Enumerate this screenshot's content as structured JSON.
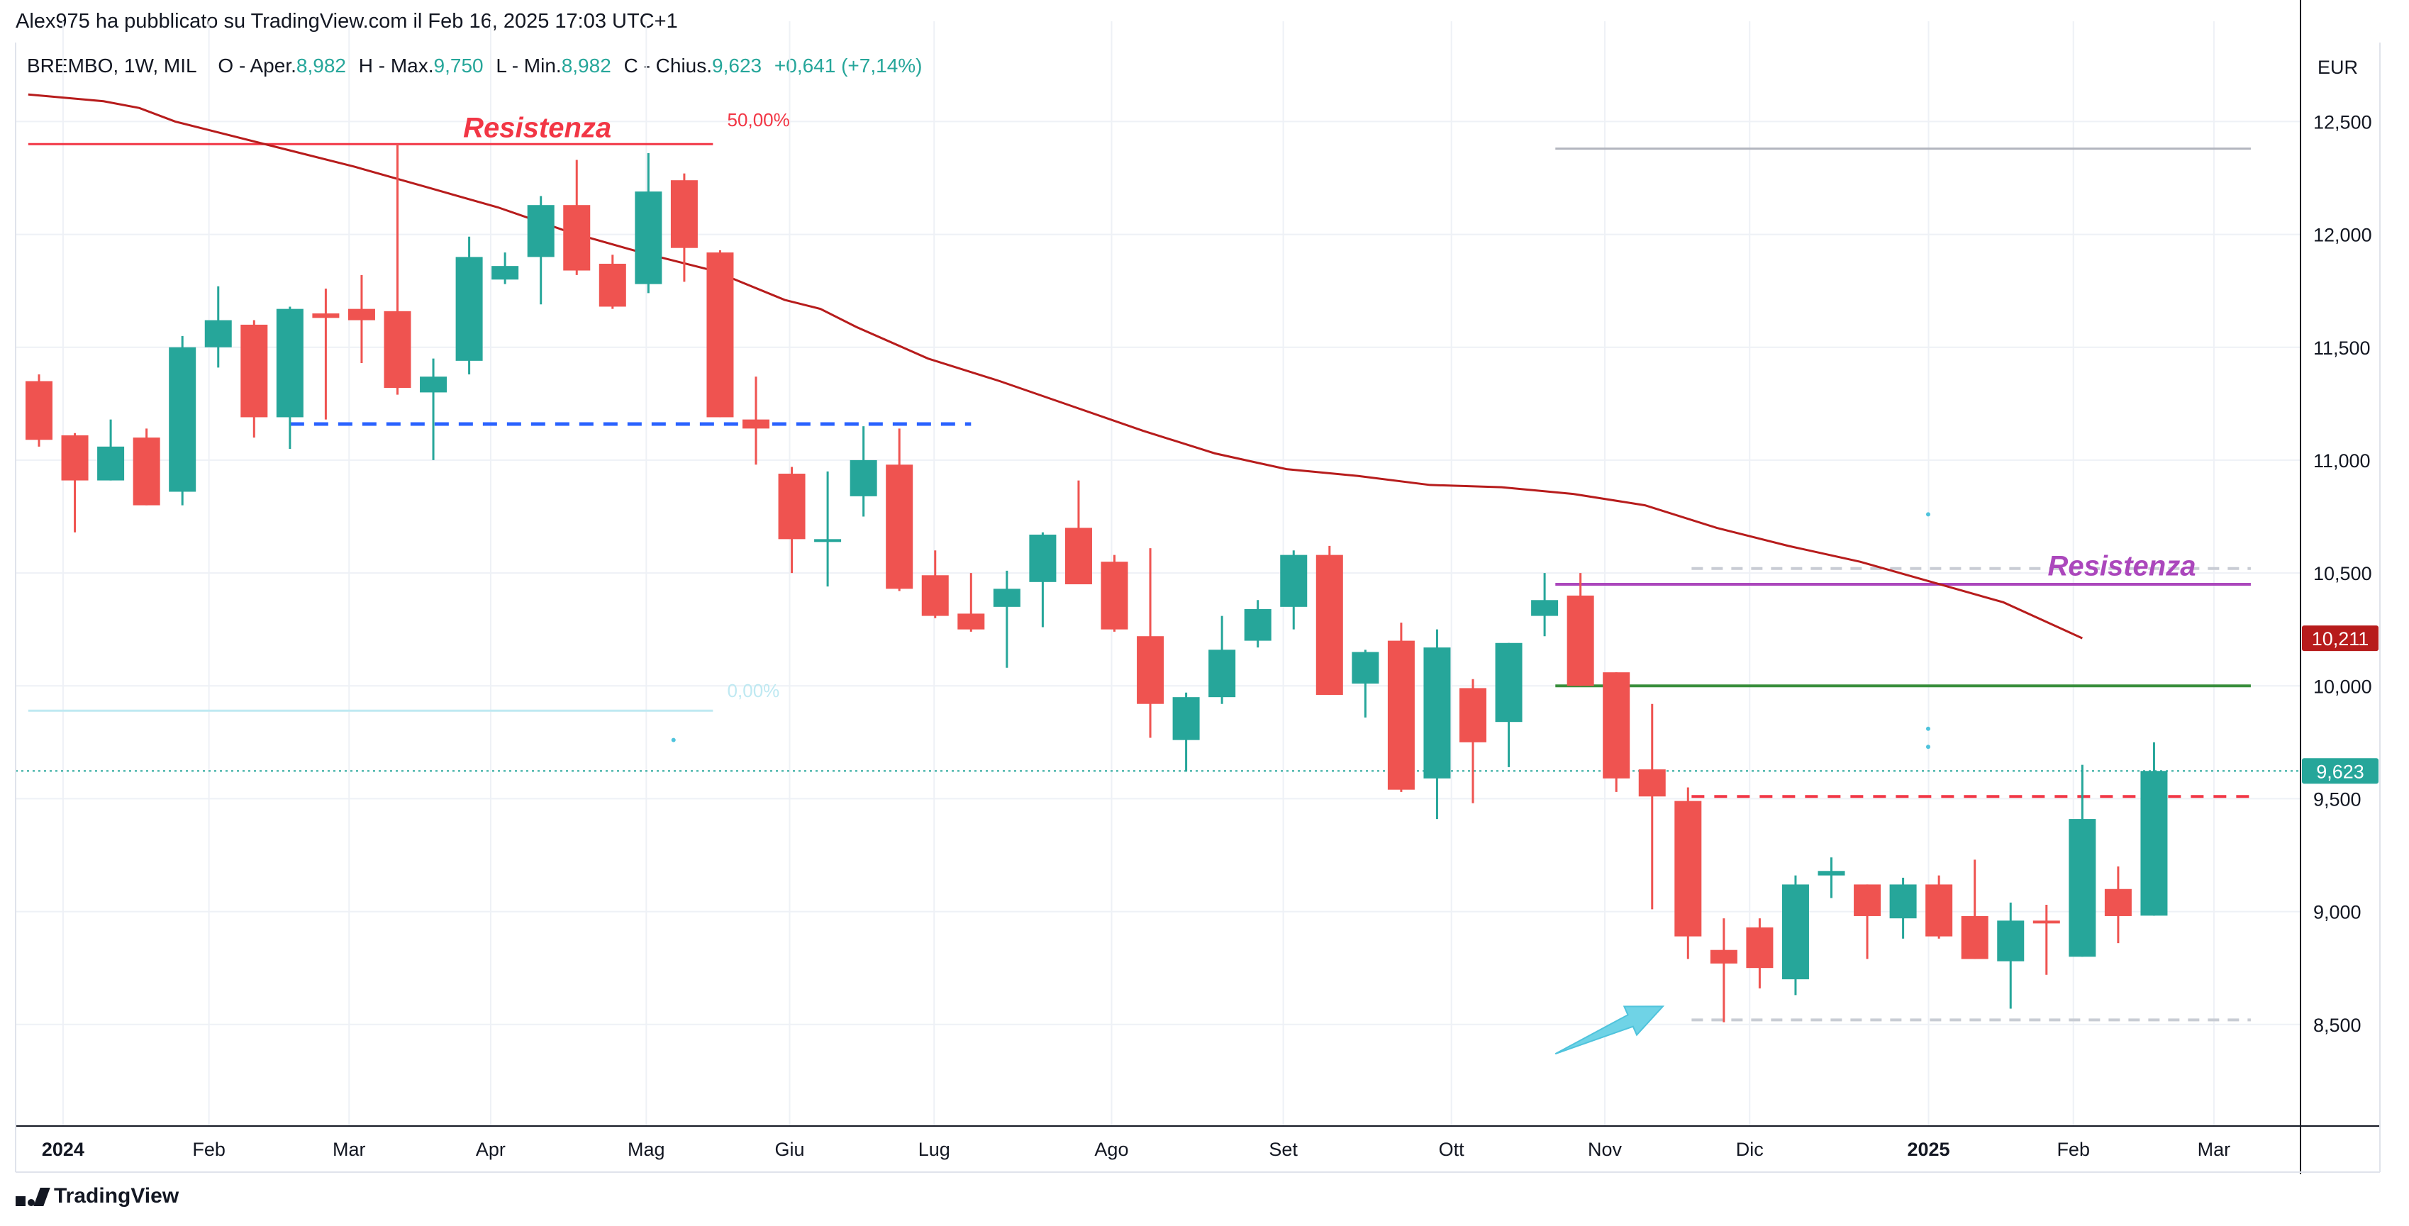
{
  "header": {
    "published": "Alex975 ha pubblicato su TradingView.com il Feb 16, 2025 17:03 UTC+1"
  },
  "legend": {
    "symbol": "BREMBO, 1W, MIL",
    "open_label": "O - Aper.",
    "open_value": "8,982",
    "high_label": "H - Max.",
    "high_value": "9,750",
    "low_label": "L - Min.",
    "low_value": "8,982",
    "close_label": "C - Chius.",
    "close_value": "9,623",
    "change": "+0,641 (+7,14%)"
  },
  "currency": "EUR",
  "footer": {
    "brand": "TradingView"
  },
  "colors": {
    "up": "#26a69a",
    "down": "#ef5350",
    "ma": "#b71c1c",
    "resistance_red": "#f23645",
    "resistance_purple": "#ab47bc",
    "support_green": "#388e3c",
    "dashed_blue": "#2962ff",
    "arrow": "#6fd3e6"
  },
  "chart_data": {
    "type": "candlestick",
    "interval": "1W",
    "ylim": [
      8.05,
      12.85
    ],
    "y_ticks": [
      {
        "v": 8.5,
        "label": "8,500"
      },
      {
        "v": 9.0,
        "label": "9,000"
      },
      {
        "v": 9.5,
        "label": "9,500"
      },
      {
        "v": 10.0,
        "label": "10,000"
      },
      {
        "v": 10.5,
        "label": "10,500"
      },
      {
        "v": 11.0,
        "label": "11,000"
      },
      {
        "v": 11.5,
        "label": "11,500"
      },
      {
        "v": 12.0,
        "label": "12,000"
      },
      {
        "v": 12.5,
        "label": "12,500"
      }
    ],
    "x_ticks": [
      {
        "i": 0.67,
        "label": "2024",
        "bold": true
      },
      {
        "i": 4.74,
        "label": "Feb"
      },
      {
        "i": 8.65,
        "label": "Mar"
      },
      {
        "i": 12.6,
        "label": "Apr"
      },
      {
        "i": 16.94,
        "label": "Mag"
      },
      {
        "i": 20.94,
        "label": "Giu"
      },
      {
        "i": 24.97,
        "label": "Lug"
      },
      {
        "i": 29.92,
        "label": "Ago"
      },
      {
        "i": 34.71,
        "label": "Set"
      },
      {
        "i": 39.4,
        "label": "Ott"
      },
      {
        "i": 43.68,
        "label": "Nov"
      },
      {
        "i": 47.72,
        "label": "Dic"
      },
      {
        "i": 52.71,
        "label": "2025",
        "bold": true
      },
      {
        "i": 56.75,
        "label": "Feb"
      },
      {
        "i": 60.67,
        "label": "Mar"
      }
    ],
    "candles": [
      {
        "o": 11.35,
        "h": 11.38,
        "l": 11.06,
        "c": 11.09
      },
      {
        "o": 11.11,
        "h": 11.12,
        "l": 10.68,
        "c": 10.91
      },
      {
        "o": 10.91,
        "h": 11.18,
        "l": 10.91,
        "c": 11.06
      },
      {
        "o": 11.1,
        "h": 11.14,
        "l": 10.8,
        "c": 10.8
      },
      {
        "o": 10.86,
        "h": 11.55,
        "l": 10.8,
        "c": 11.5
      },
      {
        "o": 11.5,
        "h": 11.77,
        "l": 11.41,
        "c": 11.62
      },
      {
        "o": 11.6,
        "h": 11.62,
        "l": 11.1,
        "c": 11.19
      },
      {
        "o": 11.19,
        "h": 11.68,
        "l": 11.05,
        "c": 11.67
      },
      {
        "o": 11.65,
        "h": 11.76,
        "l": 11.18,
        "c": 11.63
      },
      {
        "o": 11.67,
        "h": 11.82,
        "l": 11.43,
        "c": 11.62
      },
      {
        "o": 11.66,
        "h": 12.4,
        "l": 11.29,
        "c": 11.32
      },
      {
        "o": 11.3,
        "h": 11.45,
        "l": 11.0,
        "c": 11.37
      },
      {
        "o": 11.44,
        "h": 11.99,
        "l": 11.38,
        "c": 11.9
      },
      {
        "o": 11.8,
        "h": 11.92,
        "l": 11.78,
        "c": 11.86
      },
      {
        "o": 11.9,
        "h": 12.17,
        "l": 11.69,
        "c": 12.13
      },
      {
        "o": 12.13,
        "h": 12.33,
        "l": 11.82,
        "c": 11.84
      },
      {
        "o": 11.87,
        "h": 11.91,
        "l": 11.67,
        "c": 11.68
      },
      {
        "o": 11.78,
        "h": 12.36,
        "l": 11.74,
        "c": 12.19
      },
      {
        "o": 12.24,
        "h": 12.27,
        "l": 11.79,
        "c": 11.94
      },
      {
        "o": 11.92,
        "h": 11.93,
        "l": 11.19,
        "c": 11.19
      },
      {
        "o": 11.18,
        "h": 11.37,
        "l": 10.98,
        "c": 11.14
      },
      {
        "o": 10.94,
        "h": 10.97,
        "l": 10.5,
        "c": 10.65
      },
      {
        "o": 10.65,
        "h": 10.95,
        "l": 10.44,
        "c": 10.65
      },
      {
        "o": 10.84,
        "h": 11.15,
        "l": 10.75,
        "c": 11.0
      },
      {
        "o": 10.98,
        "h": 11.14,
        "l": 10.42,
        "c": 10.43
      },
      {
        "o": 10.49,
        "h": 10.6,
        "l": 10.3,
        "c": 10.31
      },
      {
        "o": 10.32,
        "h": 10.5,
        "l": 10.24,
        "c": 10.25
      },
      {
        "o": 10.35,
        "h": 10.51,
        "l": 10.08,
        "c": 10.43
      },
      {
        "o": 10.46,
        "h": 10.68,
        "l": 10.26,
        "c": 10.67
      },
      {
        "o": 10.7,
        "h": 10.91,
        "l": 10.45,
        "c": 10.45
      },
      {
        "o": 10.55,
        "h": 10.58,
        "l": 10.24,
        "c": 10.25
      },
      {
        "o": 10.22,
        "h": 10.61,
        "l": 9.77,
        "c": 9.92
      },
      {
        "o": 9.76,
        "h": 9.97,
        "l": 9.62,
        "c": 9.95
      },
      {
        "o": 9.95,
        "h": 10.31,
        "l": 9.92,
        "c": 10.16
      },
      {
        "o": 10.2,
        "h": 10.38,
        "l": 10.17,
        "c": 10.34
      },
      {
        "o": 10.35,
        "h": 10.6,
        "l": 10.25,
        "c": 10.58
      },
      {
        "o": 10.58,
        "h": 10.62,
        "l": 9.96,
        "c": 9.96
      },
      {
        "o": 10.01,
        "h": 10.16,
        "l": 9.86,
        "c": 10.15
      },
      {
        "o": 10.2,
        "h": 10.28,
        "l": 9.53,
        "c": 9.54
      },
      {
        "o": 9.59,
        "h": 10.25,
        "l": 9.41,
        "c": 10.17
      },
      {
        "o": 9.99,
        "h": 10.03,
        "l": 9.48,
        "c": 9.75
      },
      {
        "o": 9.84,
        "h": 10.19,
        "l": 9.64,
        "c": 10.19
      },
      {
        "o": 10.31,
        "h": 10.5,
        "l": 10.22,
        "c": 10.38
      },
      {
        "o": 10.4,
        "h": 10.5,
        "l": 10.0,
        "c": 10.0
      },
      {
        "o": 10.06,
        "h": 10.06,
        "l": 9.53,
        "c": 9.59
      },
      {
        "o": 9.63,
        "h": 9.92,
        "l": 9.01,
        "c": 9.51
      },
      {
        "o": 9.49,
        "h": 9.55,
        "l": 8.79,
        "c": 8.89
      },
      {
        "o": 8.83,
        "h": 8.97,
        "l": 8.51,
        "c": 8.77
      },
      {
        "o": 8.93,
        "h": 8.97,
        "l": 8.66,
        "c": 8.75
      },
      {
        "o": 8.7,
        "h": 9.16,
        "l": 8.63,
        "c": 9.12
      },
      {
        "o": 9.16,
        "h": 9.24,
        "l": 9.06,
        "c": 9.18
      },
      {
        "o": 9.12,
        "h": 9.12,
        "l": 8.79,
        "c": 8.98
      },
      {
        "o": 8.97,
        "h": 9.15,
        "l": 8.88,
        "c": 9.12
      },
      {
        "o": 9.12,
        "h": 9.16,
        "l": 8.88,
        "c": 8.89
      },
      {
        "o": 8.98,
        "h": 9.23,
        "l": 8.79,
        "c": 8.79
      },
      {
        "o": 8.78,
        "h": 9.04,
        "l": 8.57,
        "c": 8.96
      },
      {
        "o": 8.96,
        "h": 9.03,
        "l": 8.72,
        "c": 8.95
      },
      {
        "o": 8.8,
        "h": 9.65,
        "l": 8.8,
        "c": 9.41
      },
      {
        "o": 9.1,
        "h": 9.2,
        "l": 8.86,
        "c": 8.98
      },
      {
        "o": 8.982,
        "h": 9.75,
        "l": 8.982,
        "c": 9.623
      }
    ],
    "ma": [
      [
        -0.3,
        12.62
      ],
      [
        1.8,
        12.59
      ],
      [
        2.8,
        12.56
      ],
      [
        3.8,
        12.5
      ],
      [
        4.8,
        12.46
      ],
      [
        6.8,
        12.38
      ],
      [
        8.8,
        12.3
      ],
      [
        10.8,
        12.21
      ],
      [
        12.8,
        12.12
      ],
      [
        14.8,
        12.01
      ],
      [
        16.8,
        11.92
      ],
      [
        18.8,
        11.84
      ],
      [
        20.8,
        11.71
      ],
      [
        21.8,
        11.67
      ],
      [
        22.8,
        11.59
      ],
      [
        24.8,
        11.45
      ],
      [
        26.8,
        11.35
      ],
      [
        28.8,
        11.24
      ],
      [
        30.8,
        11.13
      ],
      [
        32.8,
        11.03
      ],
      [
        34.8,
        10.96
      ],
      [
        36.8,
        10.93
      ],
      [
        38.8,
        10.89
      ],
      [
        40.8,
        10.88
      ],
      [
        42.8,
        10.85
      ],
      [
        44.8,
        10.8
      ],
      [
        46.8,
        10.7
      ],
      [
        48.8,
        10.62
      ],
      [
        50.8,
        10.55
      ],
      [
        52.8,
        10.46
      ],
      [
        54.8,
        10.37
      ],
      [
        57.0,
        10.211
      ]
    ],
    "ma_last_label": "10,211",
    "last_price_label": "9,623",
    "last_price": 9.623,
    "levels": [
      {
        "kind": "resistance-red",
        "price": 12.4,
        "from": -0.3,
        "to": 18.8
      },
      {
        "kind": "fib-0",
        "price": 9.89,
        "from": -0.3,
        "to": 18.8
      },
      {
        "kind": "dashed-blue",
        "price": 11.16,
        "from": 7.0,
        "to": 26.0
      },
      {
        "kind": "grey-top",
        "price": 12.38,
        "from": 42.3,
        "to": 61.7
      },
      {
        "kind": "resistance-purple",
        "price": 10.45,
        "from": 42.3,
        "to": 61.7
      },
      {
        "kind": "dashed-grey-upper",
        "price": 10.52,
        "from": 46.1,
        "to": 61.7
      },
      {
        "kind": "support-green",
        "price": 10.0,
        "from": 42.3,
        "to": 61.7
      },
      {
        "kind": "dashed-red",
        "price": 9.51,
        "from": 46.1,
        "to": 61.7
      },
      {
        "kind": "dashed-grey-lower",
        "price": 8.52,
        "from": 46.1,
        "to": 61.7
      }
    ],
    "annotations": [
      {
        "text": "Resistenza",
        "color": "#f23645",
        "i": 13.9,
        "price": 12.43,
        "size": 40
      },
      {
        "text": "Resistenza",
        "color": "#ab47bc",
        "i": 58.1,
        "price": 10.49,
        "size": 40
      },
      {
        "text": "50,00%",
        "color": "#f23645",
        "i": 19.2,
        "price": 12.48,
        "size": 26
      },
      {
        "text": "0,00%",
        "color": "#bfe9f2",
        "i": 19.2,
        "price": 9.95,
        "size": 26
      }
    ],
    "arrow": {
      "from": [
        42.3,
        8.37
      ],
      "to": [
        45.3,
        8.58
      ]
    },
    "dots": [
      [
        17.7,
        9.76
      ],
      [
        52.7,
        10.76
      ],
      [
        52.7,
        9.81
      ],
      [
        52.7,
        9.73
      ]
    ]
  }
}
